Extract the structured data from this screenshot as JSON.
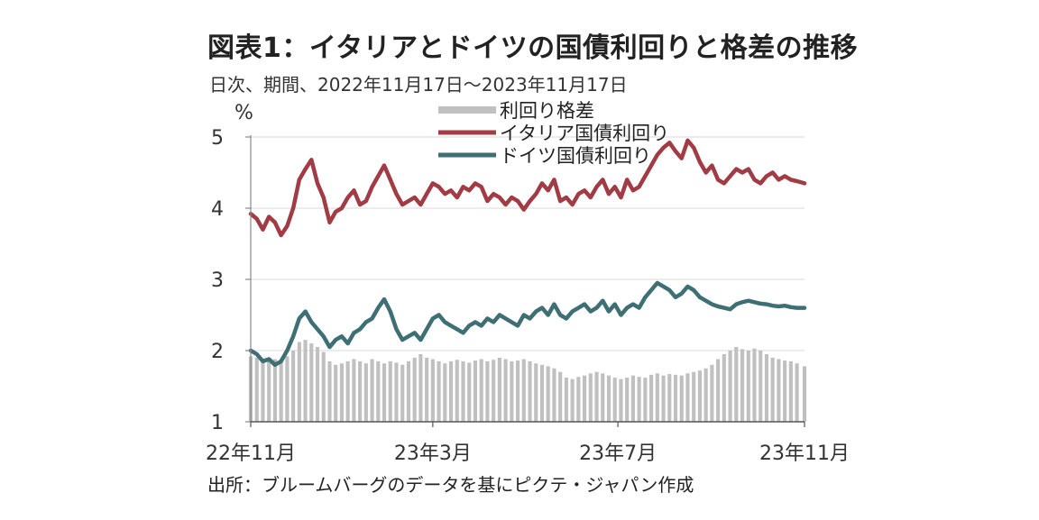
{
  "header": {
    "title": "図表1：イタリアとドイツの国債利回りと格差の推移",
    "subtitle": "日次、期間、2022年11月17日～2023年11月17日"
  },
  "footer": {
    "source": "出所：ブルームバーグのデータを基にピクテ・ジャパン作成"
  },
  "chart_data": {
    "type": "line",
    "title": "図表1：イタリアとドイツの国債利回りと格差の推移",
    "subtitle": "日次、期間、2022年11月17日～2023年11月17日",
    "y_unit": "%",
    "ylim": [
      1,
      5
    ],
    "yticks": [
      "1",
      "2",
      "3",
      "4",
      "5"
    ],
    "xlim": [
      "2022-11-17",
      "2023-11-17"
    ],
    "xticks": [
      {
        "label": "22年11月",
        "date": "2022-11-17"
      },
      {
        "label": "23年3月",
        "date": "2023-03-17"
      },
      {
        "label": "23年7月",
        "date": "2023-07-17"
      },
      {
        "label": "23年11月",
        "date": "2023-11-17"
      }
    ],
    "grid": true,
    "legend_position": "top",
    "colors": {
      "spread": "#c0c0c0",
      "italy": "#a13b44",
      "germany": "#3e6f74"
    },
    "series": [
      {
        "name": "利回り格差",
        "kind": "bar",
        "x": [
          "2022-11-17",
          "2022-11-21",
          "2022-11-25",
          "2022-11-29",
          "2022-12-03",
          "2022-12-07",
          "2022-12-11",
          "2022-12-15",
          "2022-12-19",
          "2022-12-23",
          "2022-12-27",
          "2022-12-31",
          "2023-01-04",
          "2023-01-08",
          "2023-01-12",
          "2023-01-16",
          "2023-01-20",
          "2023-01-24",
          "2023-01-28",
          "2023-02-01",
          "2023-02-05",
          "2023-02-09",
          "2023-02-13",
          "2023-02-17",
          "2023-02-21",
          "2023-02-25",
          "2023-03-01",
          "2023-03-05",
          "2023-03-09",
          "2023-03-13",
          "2023-03-17",
          "2023-03-21",
          "2023-03-25",
          "2023-03-29",
          "2023-04-02",
          "2023-04-06",
          "2023-04-10",
          "2023-04-14",
          "2023-04-18",
          "2023-04-22",
          "2023-04-26",
          "2023-04-30",
          "2023-05-04",
          "2023-05-08",
          "2023-05-12",
          "2023-05-16",
          "2023-05-20",
          "2023-05-24",
          "2023-05-28",
          "2023-06-01",
          "2023-06-05",
          "2023-06-09",
          "2023-06-13",
          "2023-06-17",
          "2023-06-21",
          "2023-06-25",
          "2023-06-29",
          "2023-07-03",
          "2023-07-07",
          "2023-07-11",
          "2023-07-15",
          "2023-07-19",
          "2023-07-23",
          "2023-07-27",
          "2023-07-31",
          "2023-08-04",
          "2023-08-08",
          "2023-08-12",
          "2023-08-16",
          "2023-08-20",
          "2023-08-24",
          "2023-08-28",
          "2023-09-01",
          "2023-09-05",
          "2023-09-09",
          "2023-09-13",
          "2023-09-17",
          "2023-09-21",
          "2023-09-25",
          "2023-09-29",
          "2023-10-03",
          "2023-10-07",
          "2023-10-11",
          "2023-10-15",
          "2023-10-19",
          "2023-10-23",
          "2023-10-27",
          "2023-10-31",
          "2023-11-04",
          "2023-11-08",
          "2023-11-12",
          "2023-11-17"
        ],
        "values": [
          1.92,
          1.9,
          1.85,
          1.9,
          1.88,
          1.85,
          1.92,
          2.0,
          2.12,
          2.15,
          2.1,
          2.05,
          1.98,
          1.85,
          1.8,
          1.82,
          1.85,
          1.88,
          1.85,
          1.82,
          1.88,
          1.85,
          1.82,
          1.85,
          1.83,
          1.8,
          1.85,
          1.9,
          1.95,
          1.9,
          1.88,
          1.85,
          1.82,
          1.85,
          1.87,
          1.85,
          1.83,
          1.86,
          1.88,
          1.85,
          1.87,
          1.9,
          1.88,
          1.85,
          1.86,
          1.88,
          1.85,
          1.82,
          1.8,
          1.78,
          1.75,
          1.7,
          1.62,
          1.6,
          1.63,
          1.65,
          1.68,
          1.7,
          1.68,
          1.65,
          1.62,
          1.6,
          1.62,
          1.65,
          1.63,
          1.62,
          1.66,
          1.68,
          1.65,
          1.67,
          1.66,
          1.65,
          1.68,
          1.7,
          1.72,
          1.75,
          1.8,
          1.88,
          1.95,
          2.0,
          2.05,
          2.02,
          2.0,
          2.03,
          2.0,
          1.95,
          1.9,
          1.88,
          1.86,
          1.85,
          1.82,
          1.78
        ]
      },
      {
        "name": "イタリア国債利回り",
        "kind": "line",
        "x": [
          "2022-11-17",
          "2022-11-21",
          "2022-11-25",
          "2022-11-29",
          "2022-12-03",
          "2022-12-07",
          "2022-12-11",
          "2022-12-15",
          "2022-12-19",
          "2022-12-23",
          "2022-12-27",
          "2022-12-31",
          "2023-01-04",
          "2023-01-08",
          "2023-01-12",
          "2023-01-16",
          "2023-01-20",
          "2023-01-24",
          "2023-01-28",
          "2023-02-01",
          "2023-02-05",
          "2023-02-09",
          "2023-02-13",
          "2023-02-17",
          "2023-02-21",
          "2023-02-25",
          "2023-03-01",
          "2023-03-05",
          "2023-03-09",
          "2023-03-13",
          "2023-03-17",
          "2023-03-21",
          "2023-03-25",
          "2023-03-29",
          "2023-04-02",
          "2023-04-06",
          "2023-04-10",
          "2023-04-14",
          "2023-04-18",
          "2023-04-22",
          "2023-04-26",
          "2023-04-30",
          "2023-05-04",
          "2023-05-08",
          "2023-05-12",
          "2023-05-16",
          "2023-05-20",
          "2023-05-24",
          "2023-05-28",
          "2023-06-01",
          "2023-06-05",
          "2023-06-09",
          "2023-06-13",
          "2023-06-17",
          "2023-06-21",
          "2023-06-25",
          "2023-06-29",
          "2023-07-03",
          "2023-07-07",
          "2023-07-11",
          "2023-07-15",
          "2023-07-19",
          "2023-07-23",
          "2023-07-27",
          "2023-07-31",
          "2023-08-04",
          "2023-08-08",
          "2023-08-12",
          "2023-08-16",
          "2023-08-20",
          "2023-08-24",
          "2023-08-28",
          "2023-09-01",
          "2023-09-05",
          "2023-09-09",
          "2023-09-13",
          "2023-09-17",
          "2023-09-21",
          "2023-09-25",
          "2023-09-29",
          "2023-10-03",
          "2023-10-07",
          "2023-10-11",
          "2023-10-15",
          "2023-10-19",
          "2023-10-23",
          "2023-10-27",
          "2023-10-31",
          "2023-11-04",
          "2023-11-08",
          "2023-11-12",
          "2023-11-17"
        ],
        "values": [
          3.92,
          3.85,
          3.7,
          3.88,
          3.8,
          3.62,
          3.75,
          4.0,
          4.4,
          4.55,
          4.68,
          4.35,
          4.15,
          3.8,
          3.95,
          4.0,
          4.15,
          4.25,
          4.05,
          4.1,
          4.3,
          4.45,
          4.6,
          4.4,
          4.2,
          4.05,
          4.1,
          4.15,
          4.05,
          4.2,
          4.35,
          4.3,
          4.2,
          4.25,
          4.15,
          4.3,
          4.25,
          4.35,
          4.3,
          4.1,
          4.2,
          4.15,
          4.05,
          4.15,
          4.1,
          3.98,
          4.1,
          4.2,
          4.35,
          4.25,
          4.4,
          4.1,
          4.15,
          4.05,
          4.2,
          4.25,
          4.15,
          4.3,
          4.4,
          4.2,
          4.3,
          4.15,
          4.4,
          4.25,
          4.3,
          4.45,
          4.6,
          4.75,
          4.85,
          4.92,
          4.8,
          4.7,
          4.95,
          4.85,
          4.65,
          4.5,
          4.6,
          4.4,
          4.35,
          4.45,
          4.55,
          4.5,
          4.55,
          4.4,
          4.35,
          4.45,
          4.5,
          4.4,
          4.45,
          4.4,
          4.38,
          4.35
        ]
      },
      {
        "name": "ドイツ国債利回り",
        "kind": "line",
        "x": [
          "2022-11-17",
          "2022-11-21",
          "2022-11-25",
          "2022-11-29",
          "2022-12-03",
          "2022-12-07",
          "2022-12-11",
          "2022-12-15",
          "2022-12-19",
          "2022-12-23",
          "2022-12-27",
          "2022-12-31",
          "2023-01-04",
          "2023-01-08",
          "2023-01-12",
          "2023-01-16",
          "2023-01-20",
          "2023-01-24",
          "2023-01-28",
          "2023-02-01",
          "2023-02-05",
          "2023-02-09",
          "2023-02-13",
          "2023-02-17",
          "2023-02-21",
          "2023-02-25",
          "2023-03-01",
          "2023-03-05",
          "2023-03-09",
          "2023-03-13",
          "2023-03-17",
          "2023-03-21",
          "2023-03-25",
          "2023-03-29",
          "2023-04-02",
          "2023-04-06",
          "2023-04-10",
          "2023-04-14",
          "2023-04-18",
          "2023-04-22",
          "2023-04-26",
          "2023-04-30",
          "2023-05-04",
          "2023-05-08",
          "2023-05-12",
          "2023-05-16",
          "2023-05-20",
          "2023-05-24",
          "2023-05-28",
          "2023-06-01",
          "2023-06-05",
          "2023-06-09",
          "2023-06-13",
          "2023-06-17",
          "2023-06-21",
          "2023-06-25",
          "2023-06-29",
          "2023-07-03",
          "2023-07-07",
          "2023-07-11",
          "2023-07-15",
          "2023-07-19",
          "2023-07-23",
          "2023-07-27",
          "2023-07-31",
          "2023-08-04",
          "2023-08-08",
          "2023-08-12",
          "2023-08-16",
          "2023-08-20",
          "2023-08-24",
          "2023-08-28",
          "2023-09-01",
          "2023-09-05",
          "2023-09-09",
          "2023-09-13",
          "2023-09-17",
          "2023-09-21",
          "2023-09-25",
          "2023-09-29",
          "2023-10-03",
          "2023-10-07",
          "2023-10-11",
          "2023-10-15",
          "2023-10-19",
          "2023-10-23",
          "2023-10-27",
          "2023-10-31",
          "2023-11-04",
          "2023-11-08",
          "2023-11-12",
          "2023-11-17"
        ],
        "values": [
          2.0,
          1.95,
          1.85,
          1.88,
          1.8,
          1.85,
          2.0,
          2.2,
          2.45,
          2.55,
          2.4,
          2.3,
          2.2,
          2.05,
          2.15,
          2.2,
          2.1,
          2.25,
          2.3,
          2.4,
          2.45,
          2.6,
          2.72,
          2.55,
          2.3,
          2.15,
          2.2,
          2.25,
          2.15,
          2.3,
          2.45,
          2.5,
          2.4,
          2.35,
          2.3,
          2.25,
          2.35,
          2.4,
          2.35,
          2.45,
          2.4,
          2.5,
          2.45,
          2.4,
          2.35,
          2.5,
          2.45,
          2.55,
          2.6,
          2.5,
          2.65,
          2.5,
          2.45,
          2.55,
          2.6,
          2.65,
          2.55,
          2.6,
          2.7,
          2.55,
          2.65,
          2.5,
          2.6,
          2.65,
          2.6,
          2.75,
          2.85,
          2.95,
          2.9,
          2.85,
          2.75,
          2.8,
          2.9,
          2.85,
          2.75,
          2.7,
          2.65,
          2.62,
          2.6,
          2.58,
          2.65,
          2.68,
          2.7,
          2.68,
          2.66,
          2.65,
          2.63,
          2.62,
          2.63,
          2.61,
          2.6,
          2.6
        ]
      }
    ]
  }
}
